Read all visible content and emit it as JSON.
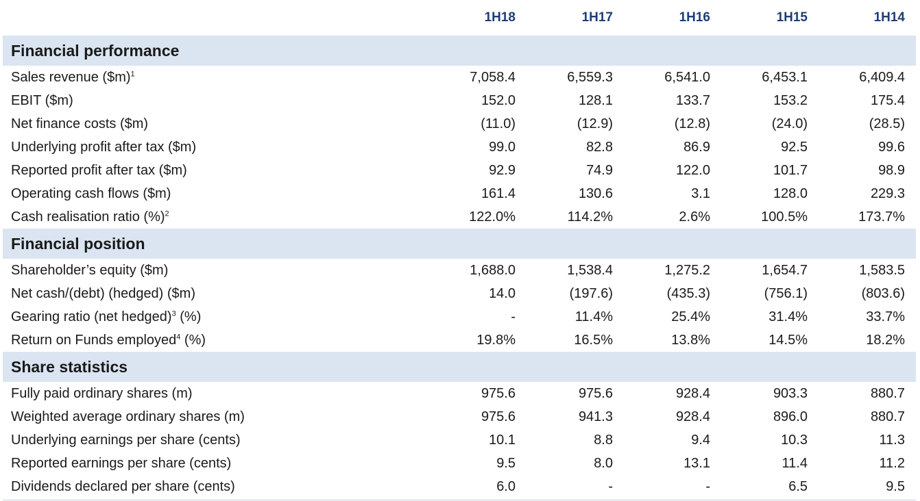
{
  "columns": [
    "1H18",
    "1H17",
    "1H16",
    "1H15",
    "1H14"
  ],
  "sections": [
    {
      "title": "Financial performance",
      "rows": [
        {
          "label": "Sales revenue ($m)",
          "sup": "1",
          "suffix": "",
          "values": [
            "7,058.4",
            "6,559.3",
            "6,541.0",
            "6,453.1",
            "6,409.4"
          ]
        },
        {
          "label": "EBIT ($m)",
          "sup": "",
          "suffix": "",
          "values": [
            "152.0",
            "128.1",
            "133.7",
            "153.2",
            "175.4"
          ]
        },
        {
          "label": "Net finance costs ($m)",
          "sup": "",
          "suffix": "",
          "values": [
            "(11.0)",
            "(12.9)",
            "(12.8)",
            "(24.0)",
            "(28.5)"
          ]
        },
        {
          "label": "Underlying profit after tax ($m)",
          "sup": "",
          "suffix": "",
          "values": [
            "99.0",
            "82.8",
            "86.9",
            "92.5",
            "99.6"
          ]
        },
        {
          "label": "Reported profit after tax ($m)",
          "sup": "",
          "suffix": "",
          "values": [
            "92.9",
            "74.9",
            "122.0",
            "101.7",
            "98.9"
          ]
        },
        {
          "label": "Operating cash flows ($m)",
          "sup": "",
          "suffix": "",
          "values": [
            "161.4",
            "130.6",
            "3.1",
            "128.0",
            "229.3"
          ]
        },
        {
          "label": "Cash realisation ratio (%)",
          "sup": "2",
          "suffix": "",
          "values": [
            "122.0%",
            "114.2%",
            "2.6%",
            "100.5%",
            "173.7%"
          ]
        }
      ]
    },
    {
      "title": "Financial position",
      "rows": [
        {
          "label": "Shareholder’s equity ($m)",
          "sup": "",
          "suffix": "",
          "values": [
            "1,688.0",
            "1,538.4",
            "1,275.2",
            "1,654.7",
            "1,583.5"
          ]
        },
        {
          "label": "Net cash/(debt) (hedged) ($m)",
          "sup": "",
          "suffix": "",
          "values": [
            "14.0",
            "(197.6)",
            "(435.3)",
            "(756.1)",
            "(803.6)"
          ]
        },
        {
          "label": "Gearing ratio (net hedged)",
          "sup": "3",
          "suffix": " (%)",
          "values": [
            "-",
            "11.4%",
            "25.4%",
            "31.4%",
            "33.7%"
          ]
        },
        {
          "label": "Return on Funds employed",
          "sup": "4",
          "suffix": " (%)",
          "values": [
            "19.8%",
            "16.5%",
            "13.8%",
            "14.5%",
            "18.2%"
          ]
        }
      ]
    },
    {
      "title": "Share statistics",
      "rows": [
        {
          "label": "Fully paid ordinary shares (m)",
          "sup": "",
          "suffix": "",
          "values": [
            "975.6",
            "975.6",
            "928.4",
            "903.3",
            "880.7"
          ]
        },
        {
          "label": "Weighted average ordinary shares (m)",
          "sup": "",
          "suffix": "",
          "values": [
            "975.6",
            "941.3",
            "928.4",
            "896.0",
            "880.7"
          ]
        },
        {
          "label": "Underlying earnings per share (cents)",
          "sup": "",
          "suffix": "",
          "values": [
            "10.1",
            "8.8",
            "9.4",
            "10.3",
            "11.3"
          ]
        },
        {
          "label": "Reported earnings per share (cents)",
          "sup": "",
          "suffix": "",
          "values": [
            "9.5",
            "8.0",
            "13.1",
            "11.4",
            "11.2"
          ]
        },
        {
          "label": "Dividends declared per share (cents)",
          "sup": "",
          "suffix": "",
          "values": [
            "6.0",
            "-",
            "-",
            "6.5",
            "9.5"
          ]
        }
      ]
    }
  ]
}
